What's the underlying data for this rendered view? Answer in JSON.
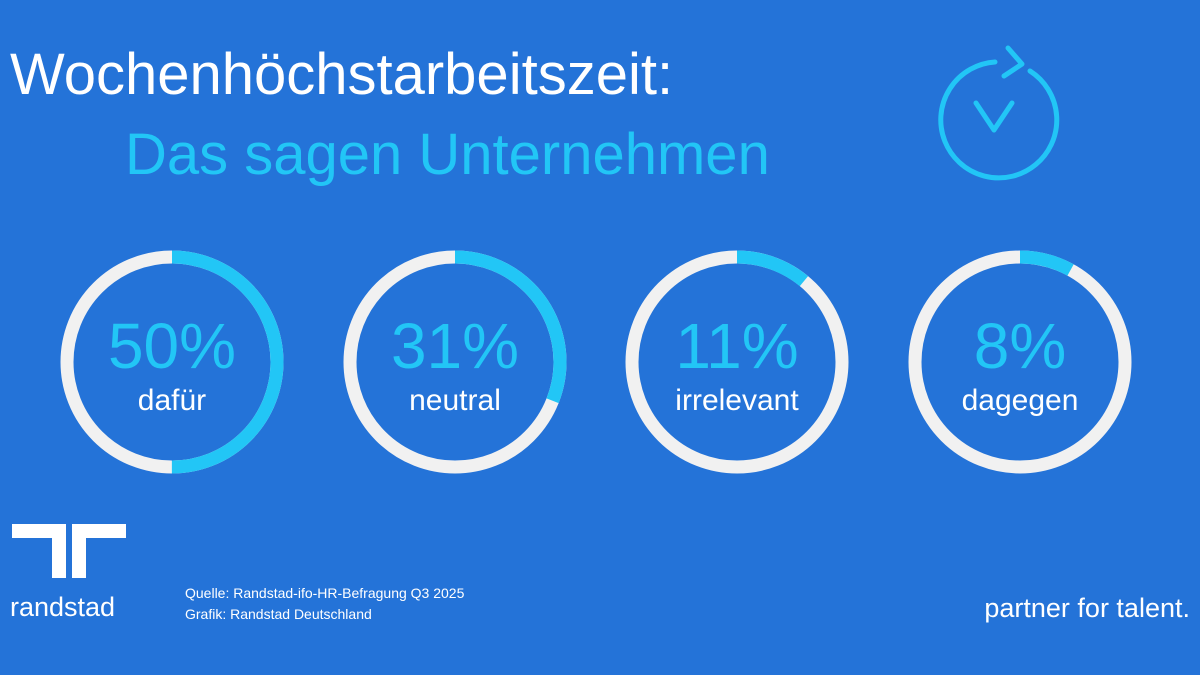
{
  "chart_data": {
    "type": "progress-rings",
    "title": "Wochenhöchstarbeitszeit:",
    "subtitle": "Das sagen Unternehmen",
    "categories": [
      "dafür",
      "neutral",
      "irrelevant",
      "dagegen"
    ],
    "values": [
      50,
      31,
      11,
      8
    ],
    "value_labels": [
      "50%",
      "31%",
      "11%",
      "8%"
    ],
    "ylim": [
      0,
      100
    ],
    "color": "#22c6f6",
    "track_color": "#f1f1f1"
  },
  "footer": {
    "source": "Quelle: Randstad-ifo-HR-Befragung Q3 2025",
    "credit": "Grafik: Randstad Deutschland",
    "logo": "randstad",
    "tagline": "partner for talent."
  }
}
